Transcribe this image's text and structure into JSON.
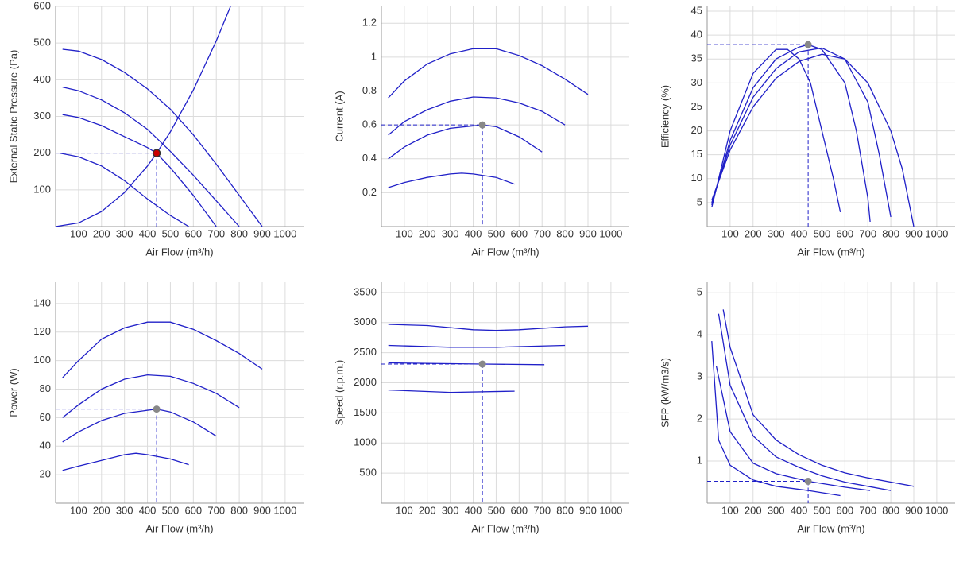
{
  "chart_data": [
    {
      "type": "line",
      "ylabel": "External Static Pressure (Pa)",
      "xlabel": "Air Flow (m³/h)",
      "xlim": [
        0,
        1080
      ],
      "xticks": [
        100,
        200,
        300,
        400,
        500,
        600,
        700,
        800,
        900,
        1000
      ],
      "ylim": [
        0,
        600
      ],
      "yticks": [
        100,
        200,
        300,
        400,
        500,
        600
      ],
      "grid": true,
      "series": [
        {
          "color": "#2020c8",
          "x": [
            30,
            100,
            200,
            300,
            400,
            500,
            600,
            700,
            800,
            900
          ],
          "values": [
            483,
            478,
            455,
            420,
            375,
            320,
            250,
            170,
            85,
            0
          ]
        },
        {
          "color": "#2020c8",
          "x": [
            30,
            100,
            200,
            300,
            400,
            500,
            600,
            700,
            800
          ],
          "values": [
            380,
            370,
            345,
            310,
            265,
            205,
            140,
            70,
            0
          ]
        },
        {
          "color": "#2020c8",
          "x": [
            30,
            100,
            200,
            300,
            400,
            440,
            500,
            600,
            700
          ],
          "values": [
            305,
            297,
            275,
            245,
            215,
            200,
            160,
            85,
            0
          ]
        },
        {
          "color": "#2020c8",
          "x": [
            20,
            100,
            200,
            300,
            400,
            500,
            580
          ],
          "values": [
            200,
            190,
            165,
            125,
            75,
            30,
            0
          ]
        },
        {
          "color": "#2020c8",
          "x": [
            0,
            100,
            200,
            300,
            400,
            440,
            500,
            600,
            700,
            762
          ],
          "values": [
            0,
            10,
            41,
            93,
            165,
            200,
            258,
            372,
            506,
            600
          ]
        }
      ],
      "point": {
        "x": 440,
        "y": 200,
        "color": "#cc0000"
      }
    },
    {
      "type": "line",
      "ylabel": "Current (A)",
      "xlabel": "Air Flow (m³/h)",
      "xlim": [
        0,
        1080
      ],
      "xticks": [
        100,
        200,
        300,
        400,
        500,
        600,
        700,
        800,
        900,
        1000
      ],
      "ylim": [
        0,
        1.3
      ],
      "yticks": [
        0.2,
        0.4,
        0.6,
        0.8,
        1,
        1.2
      ],
      "grid": true,
      "series": [
        {
          "color": "#2020c8",
          "x": [
            30,
            100,
            200,
            300,
            400,
            500,
            600,
            700,
            800,
            900
          ],
          "values": [
            0.76,
            0.86,
            0.96,
            1.02,
            1.05,
            1.05,
            1.01,
            0.95,
            0.87,
            0.78
          ]
        },
        {
          "color": "#2020c8",
          "x": [
            30,
            100,
            200,
            300,
            400,
            500,
            600,
            700,
            800
          ],
          "values": [
            0.54,
            0.62,
            0.69,
            0.74,
            0.765,
            0.76,
            0.73,
            0.68,
            0.6
          ]
        },
        {
          "color": "#2020c8",
          "x": [
            30,
            100,
            200,
            300,
            440,
            500,
            600,
            700
          ],
          "values": [
            0.4,
            0.47,
            0.54,
            0.58,
            0.6,
            0.59,
            0.53,
            0.44
          ]
        },
        {
          "color": "#2020c8",
          "x": [
            30,
            100,
            200,
            300,
            350,
            400,
            500,
            580
          ],
          "values": [
            0.23,
            0.26,
            0.29,
            0.31,
            0.315,
            0.31,
            0.29,
            0.25
          ]
        }
      ],
      "point": {
        "x": 440,
        "y": 0.6,
        "color": "#888888"
      }
    },
    {
      "type": "line",
      "ylabel": "Efficiency (%)",
      "xlabel": "Air Flow (m³/h)",
      "xlim": [
        0,
        1080
      ],
      "xticks": [
        100,
        200,
        300,
        400,
        500,
        600,
        700,
        800,
        900,
        1000
      ],
      "ylim": [
        0,
        46
      ],
      "yticks": [
        5,
        10,
        15,
        20,
        25,
        30,
        35,
        40,
        45
      ],
      "grid": true,
      "series": [
        {
          "color": "#2020c8",
          "x": [
            20,
            100,
            200,
            300,
            350,
            400,
            450,
            500,
            550,
            580
          ],
          "values": [
            4,
            20,
            32,
            37,
            37,
            35,
            30,
            20,
            10,
            3
          ]
        },
        {
          "color": "#2020c8",
          "x": [
            20,
            100,
            200,
            300,
            400,
            440,
            500,
            600,
            650,
            700,
            710
          ],
          "values": [
            4.5,
            18,
            29,
            35,
            37.5,
            38,
            37,
            30,
            20,
            6,
            1
          ]
        },
        {
          "color": "#2020c8",
          "x": [
            20,
            100,
            200,
            300,
            400,
            500,
            600,
            700,
            750,
            800
          ],
          "values": [
            5,
            17,
            27,
            33,
            36.5,
            37.3,
            35,
            26,
            15,
            2
          ]
        },
        {
          "color": "#2020c8",
          "x": [
            20,
            100,
            200,
            300,
            400,
            500,
            600,
            700,
            800,
            850,
            900
          ],
          "values": [
            5.5,
            16,
            25,
            31,
            34.5,
            36,
            35,
            30,
            20,
            12,
            0
          ]
        }
      ],
      "point": {
        "x": 440,
        "y": 38,
        "color": "#888888"
      }
    },
    {
      "type": "line",
      "ylabel": "Power (W)",
      "xlabel": "Air Flow (m³/h)",
      "xlim": [
        0,
        1080
      ],
      "xticks": [
        100,
        200,
        300,
        400,
        500,
        600,
        700,
        800,
        900,
        1000
      ],
      "ylim": [
        0,
        155
      ],
      "yticks": [
        20,
        40,
        60,
        80,
        100,
        120,
        140
      ],
      "grid": true,
      "series": [
        {
          "color": "#2020c8",
          "x": [
            30,
            100,
            200,
            300,
            400,
            500,
            600,
            700,
            800,
            900
          ],
          "values": [
            88,
            100,
            115,
            123,
            127,
            127,
            122,
            114,
            105,
            94
          ]
        },
        {
          "color": "#2020c8",
          "x": [
            30,
            100,
            200,
            300,
            400,
            500,
            600,
            700,
            800
          ],
          "values": [
            60,
            69,
            80,
            87,
            90,
            89,
            84,
            77,
            67
          ]
        },
        {
          "color": "#2020c8",
          "x": [
            30,
            100,
            200,
            300,
            440,
            500,
            600,
            700
          ],
          "values": [
            43,
            50,
            58,
            63,
            66,
            64,
            57,
            47
          ]
        },
        {
          "color": "#2020c8",
          "x": [
            30,
            100,
            200,
            300,
            350,
            400,
            500,
            580
          ],
          "values": [
            23,
            26,
            30,
            34,
            35,
            34,
            31,
            27
          ]
        }
      ],
      "point": {
        "x": 440,
        "y": 66,
        "color": "#888888"
      }
    },
    {
      "type": "line",
      "ylabel": "Speed (r.p.m.)",
      "xlabel": "Air Flow (m³/h)",
      "xlim": [
        0,
        1080
      ],
      "xticks": [
        100,
        200,
        300,
        400,
        500,
        600,
        700,
        800,
        900,
        1000
      ],
      "ylim": [
        0,
        3670
      ],
      "yticks": [
        500,
        1000,
        1500,
        2000,
        2500,
        3000,
        3500
      ],
      "grid": true,
      "series": [
        {
          "color": "#2020c8",
          "x": [
            30,
            200,
            400,
            500,
            600,
            800,
            900
          ],
          "values": [
            2970,
            2950,
            2880,
            2870,
            2880,
            2930,
            2940
          ]
        },
        {
          "color": "#2020c8",
          "x": [
            30,
            300,
            500,
            800
          ],
          "values": [
            2620,
            2590,
            2590,
            2620
          ]
        },
        {
          "color": "#2020c8",
          "x": [
            30,
            440,
            710
          ],
          "values": [
            2330,
            2310,
            2300
          ]
        },
        {
          "color": "#2020c8",
          "x": [
            30,
            300,
            580
          ],
          "values": [
            1880,
            1840,
            1860
          ]
        }
      ],
      "point": {
        "x": 440,
        "y": 2310,
        "color": "#888888"
      }
    },
    {
      "type": "line",
      "ylabel": "SFP (kW/m3/s)",
      "xlabel": "Air Flow (m³/h)",
      "xlim": [
        0,
        1080
      ],
      "xticks": [
        100,
        200,
        300,
        400,
        500,
        600,
        700,
        800,
        900,
        1000
      ],
      "ylim": [
        0,
        5.25
      ],
      "yticks": [
        1,
        2,
        3,
        4,
        5
      ],
      "grid": true,
      "series": [
        {
          "color": "#2020c8",
          "x": [
            20,
            50,
            100,
            200,
            300,
            440,
            580
          ],
          "values": [
            3.85,
            1.5,
            0.9,
            0.55,
            0.4,
            0.3,
            0.18
          ]
        },
        {
          "color": "#2020c8",
          "x": [
            40,
            100,
            200,
            300,
            440,
            600,
            710
          ],
          "values": [
            3.25,
            1.7,
            0.95,
            0.7,
            0.52,
            0.38,
            0.3
          ]
        },
        {
          "color": "#2020c8",
          "x": [
            50,
            100,
            200,
            300,
            400,
            500,
            600,
            700,
            800
          ],
          "values": [
            4.5,
            2.8,
            1.6,
            1.1,
            0.85,
            0.65,
            0.5,
            0.4,
            0.3
          ]
        },
        {
          "color": "#2020c8",
          "x": [
            70,
            100,
            200,
            300,
            400,
            500,
            600,
            700,
            800,
            900
          ],
          "values": [
            4.6,
            3.7,
            2.1,
            1.5,
            1.15,
            0.9,
            0.72,
            0.6,
            0.5,
            0.4
          ]
        }
      ],
      "point": {
        "x": 440,
        "y": 0.52,
        "color": "#888888"
      }
    }
  ]
}
